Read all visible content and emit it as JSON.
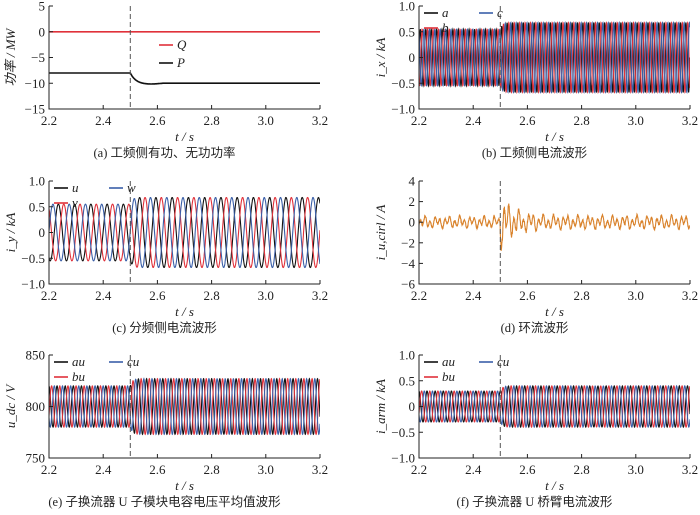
{
  "chart_data": [
    {
      "id": "a",
      "type": "line",
      "caption": "(a) 工频侧有功、无功功率",
      "xlabel": "t / s",
      "ylabel": "功率 / MW",
      "xlim": [
        2.2,
        3.2
      ],
      "ylim": [
        -15,
        5
      ],
      "yticks": [
        "5",
        "0",
        "−5",
        "−10",
        "−15"
      ],
      "ytick_values": [
        5,
        0,
        -5,
        -10,
        -15
      ],
      "xticks": [
        "2.2",
        "2.4",
        "2.6",
        "2.8",
        "3.0",
        "3.2"
      ],
      "event_t": 2.5,
      "series": [
        {
          "name": "Q",
          "color": "#e0313a",
          "kind": "step",
          "before": 0,
          "after": 0
        },
        {
          "name": "P",
          "color": "#111111",
          "kind": "step",
          "before": -8,
          "after": -10,
          "undershoot": -10.2
        }
      ],
      "legend": "center"
    },
    {
      "id": "b",
      "type": "line",
      "caption": "(b) 工频侧电流波形",
      "xlabel": "t / s",
      "ylabel": "i_x / kA",
      "xlim": [
        2.2,
        3.2
      ],
      "ylim": [
        -1,
        1
      ],
      "yticks": [
        "1.0",
        "0.5",
        "0",
        "−0.5",
        "−1.0"
      ],
      "ytick_values": [
        1,
        0.5,
        0,
        -0.5,
        -1
      ],
      "xticks": [
        "2.2",
        "2.4",
        "2.6",
        "2.8",
        "3.0",
        "3.2"
      ],
      "event_t": 2.5,
      "freq_hz": 50,
      "series": [
        {
          "name": "a",
          "color": "#111111",
          "amp_before": 0.55,
          "amp_after": 0.68,
          "phase_deg": 0
        },
        {
          "name": "b",
          "color": "#e0313a",
          "amp_before": 0.55,
          "amp_after": 0.68,
          "phase_deg": -120
        },
        {
          "name": "c",
          "color": "#3a5fa8",
          "amp_before": 0.55,
          "amp_after": 0.68,
          "phase_deg": 120
        }
      ],
      "legend": "top-left"
    },
    {
      "id": "c",
      "type": "line",
      "caption": "(c) 分频侧电流波形",
      "xlabel": "t / s",
      "ylabel": "i_y / kA",
      "xlim": [
        2.2,
        3.2
      ],
      "ylim": [
        -1,
        1
      ],
      "yticks": [
        "1.0",
        "0.5",
        "0",
        "−0.5",
        "−1.0"
      ],
      "ytick_values": [
        1,
        0.5,
        0,
        -0.5,
        -1
      ],
      "xticks": [
        "2.2",
        "2.4",
        "2.6",
        "2.8",
        "3.0",
        "3.2"
      ],
      "event_t": 2.5,
      "freq_hz": 16.67,
      "series": [
        {
          "name": "u",
          "color": "#111111",
          "amp_before": 0.55,
          "amp_after": 0.68,
          "phase_deg": 0
        },
        {
          "name": "v",
          "color": "#e0313a",
          "amp_before": 0.55,
          "amp_after": 0.68,
          "phase_deg": -120
        },
        {
          "name": "w",
          "color": "#3a5fa8",
          "amp_before": 0.55,
          "amp_after": 0.68,
          "phase_deg": 120
        }
      ],
      "legend": "top-left"
    },
    {
      "id": "d",
      "type": "line",
      "caption": "(d) 环流波形",
      "xlabel": "t / s",
      "ylabel": "i_u,cirl / A",
      "xlim": [
        2.2,
        3.2
      ],
      "ylim": [
        -6,
        4
      ],
      "yticks": [
        "4",
        "2",
        "0",
        "−2",
        "−4",
        "−6"
      ],
      "ytick_values": [
        4,
        2,
        0,
        -2,
        -4,
        -6
      ],
      "xticks": [
        "2.2",
        "2.4",
        "2.6",
        "2.8",
        "3.0",
        "3.2"
      ],
      "event_t": 2.5,
      "series": [
        {
          "name": "i_u,cirl",
          "color": "#d9822b",
          "kind": "noise",
          "amp_before": 0.6,
          "amp_peak": 2.8,
          "amp_after": 0.7
        }
      ]
    },
    {
      "id": "e",
      "type": "line",
      "caption": "(e) 子换流器 U 子模块电容电压平均值波形",
      "xlabel": "t / s",
      "ylabel": "u_dc / V",
      "xlim": [
        2.2,
        3.2
      ],
      "ylim": [
        750,
        850
      ],
      "yticks": [
        "850",
        "800",
        "750"
      ],
      "ytick_values": [
        850,
        800,
        750
      ],
      "xticks": [
        "2.2",
        "2.4",
        "2.6",
        "2.8",
        "3.0",
        "3.2"
      ],
      "event_t": 2.5,
      "freq_hz": 33.3,
      "offset": 800,
      "series": [
        {
          "name": "au",
          "color": "#111111",
          "amp_before": 20,
          "amp_after": 27,
          "phase_deg": 0
        },
        {
          "name": "bu",
          "color": "#e0313a",
          "amp_before": 20,
          "amp_after": 27,
          "phase_deg": -120
        },
        {
          "name": "cu",
          "color": "#3a5fa8",
          "amp_before": 20,
          "amp_after": 27,
          "phase_deg": 120
        }
      ],
      "legend": "top-left"
    },
    {
      "id": "f",
      "type": "line",
      "caption": "(f) 子换流器 U 桥臂电流波形",
      "xlabel": "t / s",
      "ylabel": "i_arm / kA",
      "xlim": [
        2.2,
        3.2
      ],
      "ylim": [
        -1,
        1
      ],
      "yticks": [
        "1.0",
        "0.5",
        "0",
        "−0.5",
        "−1.0"
      ],
      "ytick_values": [
        1,
        0.5,
        0,
        -0.5,
        -1
      ],
      "xticks": [
        "2.2",
        "2.4",
        "2.6",
        "2.8",
        "3.0",
        "3.2"
      ],
      "event_t": 2.5,
      "freq_hz": 33.3,
      "offset": 0,
      "series": [
        {
          "name": "au",
          "color": "#111111",
          "amp_before": 0.3,
          "amp_after": 0.4,
          "phase_deg": 0
        },
        {
          "name": "bu",
          "color": "#e0313a",
          "amp_before": 0.3,
          "amp_after": 0.4,
          "phase_deg": -120
        },
        {
          "name": "cu",
          "color": "#3a5fa8",
          "amp_before": 0.3,
          "amp_after": 0.4,
          "phase_deg": 120
        }
      ],
      "legend": "top-left"
    }
  ]
}
